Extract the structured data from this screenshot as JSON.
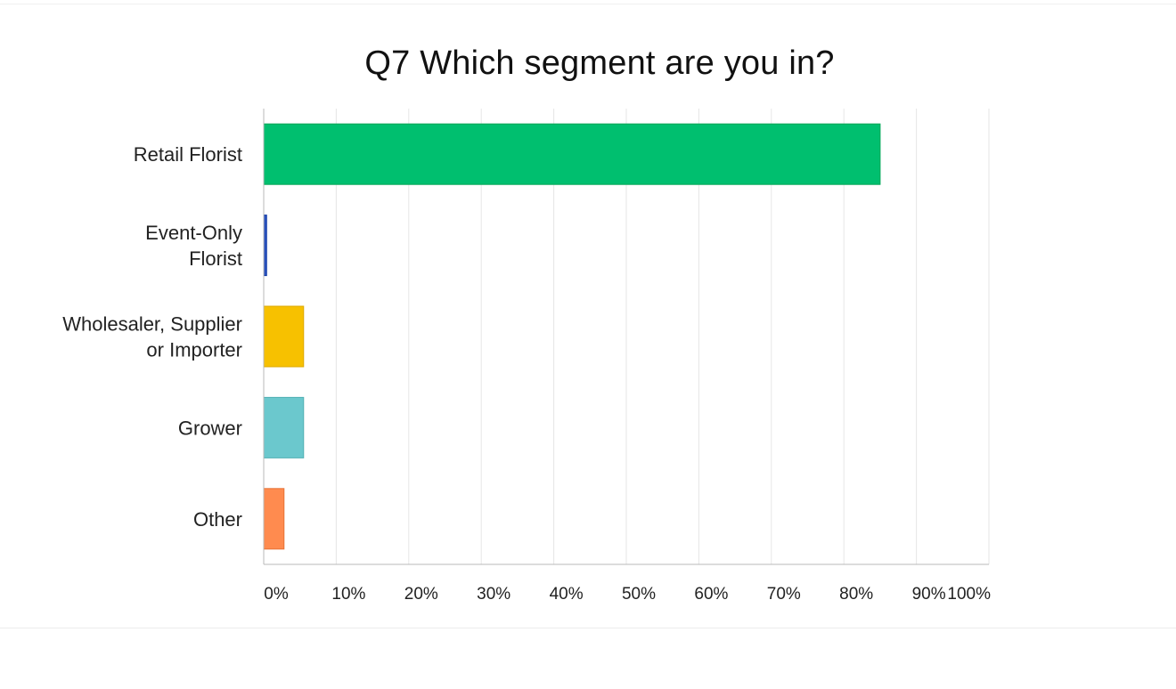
{
  "chart_data": {
    "type": "bar",
    "orientation": "horizontal",
    "title": "Q7 Which segment are you in?",
    "categories": [
      "Retail Florist",
      "Event-Only Florist",
      "Wholesaler, Supplier or Importer",
      "Grower",
      "Other"
    ],
    "category_lines": [
      [
        "Retail Florist"
      ],
      [
        "Event-Only",
        "Florist"
      ],
      [
        "Wholesaler, Supplier",
        "or Importer"
      ],
      [
        "Grower"
      ],
      [
        "Other"
      ]
    ],
    "values": [
      85,
      0.4,
      5.5,
      5.5,
      2.8
    ],
    "unit": "%",
    "colors": [
      "#00bf6f",
      "#2a52be",
      "#f7c100",
      "#6bc8cd",
      "#ff8b4f"
    ],
    "xlim": [
      0,
      100
    ],
    "x_ticks": [
      "0%",
      "10%",
      "20%",
      "30%",
      "40%",
      "50%",
      "60%",
      "70%",
      "80%",
      "90%",
      "100%"
    ],
    "grid": true,
    "legend": "none"
  }
}
